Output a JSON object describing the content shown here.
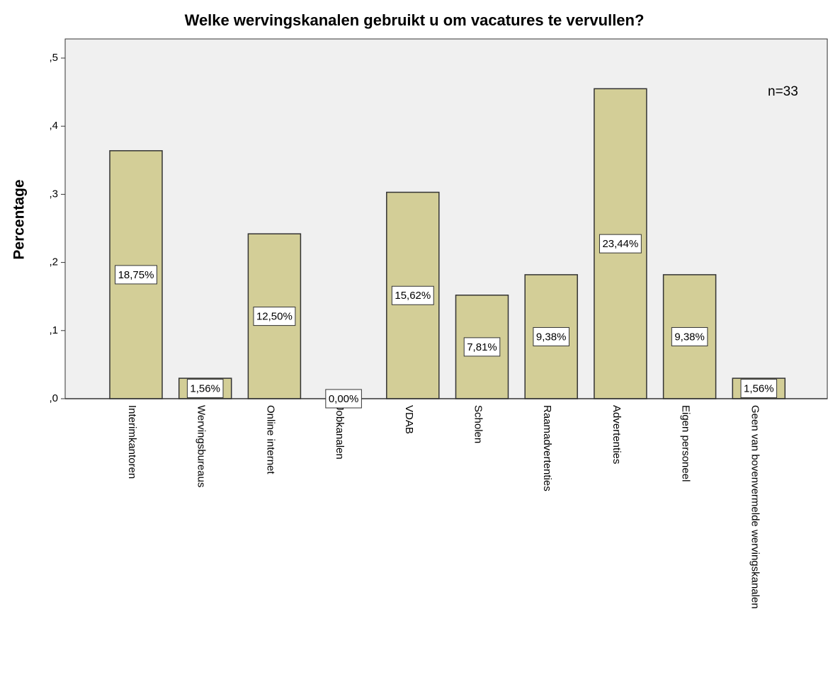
{
  "chart_data": {
    "type": "bar",
    "title": "Welke wervingskanalen gebruikt u om vacatures te vervullen?",
    "y_label": "Percentage",
    "annotation": "n=33",
    "categories": [
      "Interimkantoren",
      "Wervingsbureaus",
      "Online internet",
      "Jobkanalen",
      "VDAB",
      "Scholen",
      "Raamadvertenties",
      "Advertenties",
      "Eigen personeel",
      "Geen van bovenvermelde wervingskanalen"
    ],
    "values": [
      0.364,
      0.03,
      0.242,
      0,
      0.303,
      0.152,
      0.182,
      0.455,
      0.182,
      0.03
    ],
    "bar_texts": [
      "18,75%",
      "1,56%",
      "12,50%",
      "0,00%",
      "15,62%",
      "7,81%",
      "9,38%",
      "23,44%",
      "9,38%",
      "1,56%"
    ],
    "color": "#d3ce97",
    "ylim": [
      0,
      0.5
    ],
    "yticks": [
      {
        "value": 0,
        "label": ",0"
      },
      {
        "value": 0.1,
        "label": ",1"
      },
      {
        "value": 0.2,
        "label": ",2"
      },
      {
        "value": 0.3,
        "label": ",3"
      },
      {
        "value": 0.4,
        "label": ",4"
      },
      {
        "value": 0.5,
        "label": ",5"
      }
    ]
  }
}
